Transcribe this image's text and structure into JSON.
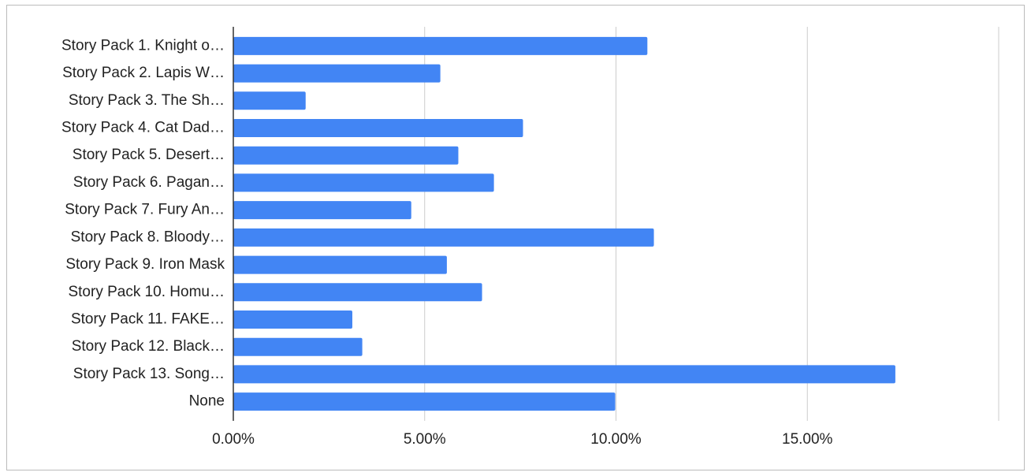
{
  "chart_data": {
    "type": "hbar",
    "categories": [
      "Story Pack 1. Knight o…",
      "Story Pack 2. Lapis W…",
      "Story Pack 3. The Sh…",
      "Story Pack 4. Cat Dad…",
      "Story Pack 5. Desert…",
      "Story Pack 6. Pagan…",
      "Story Pack 7. Fury An…",
      "Story Pack 8. Bloody…",
      "Story Pack 9. Iron Mask",
      "Story Pack 10. Homu…",
      "Story Pack 11. FAKE…",
      "Story Pack 12. Black…",
      "Story Pack 13. Song…",
      "None"
    ],
    "values": [
      10.82,
      5.41,
      1.89,
      7.57,
      5.88,
      6.81,
      4.65,
      10.99,
      5.58,
      6.5,
      3.11,
      3.37,
      17.3,
      9.98
    ],
    "color": "#4285f4",
    "xlim": [
      0,
      20
    ],
    "xticks": [
      {
        "value": 0,
        "label": "0.00%"
      },
      {
        "value": 5,
        "label": "5.00%"
      },
      {
        "value": 10,
        "label": "10.00%"
      },
      {
        "value": 15,
        "label": "15.00%"
      }
    ],
    "grid": true
  }
}
